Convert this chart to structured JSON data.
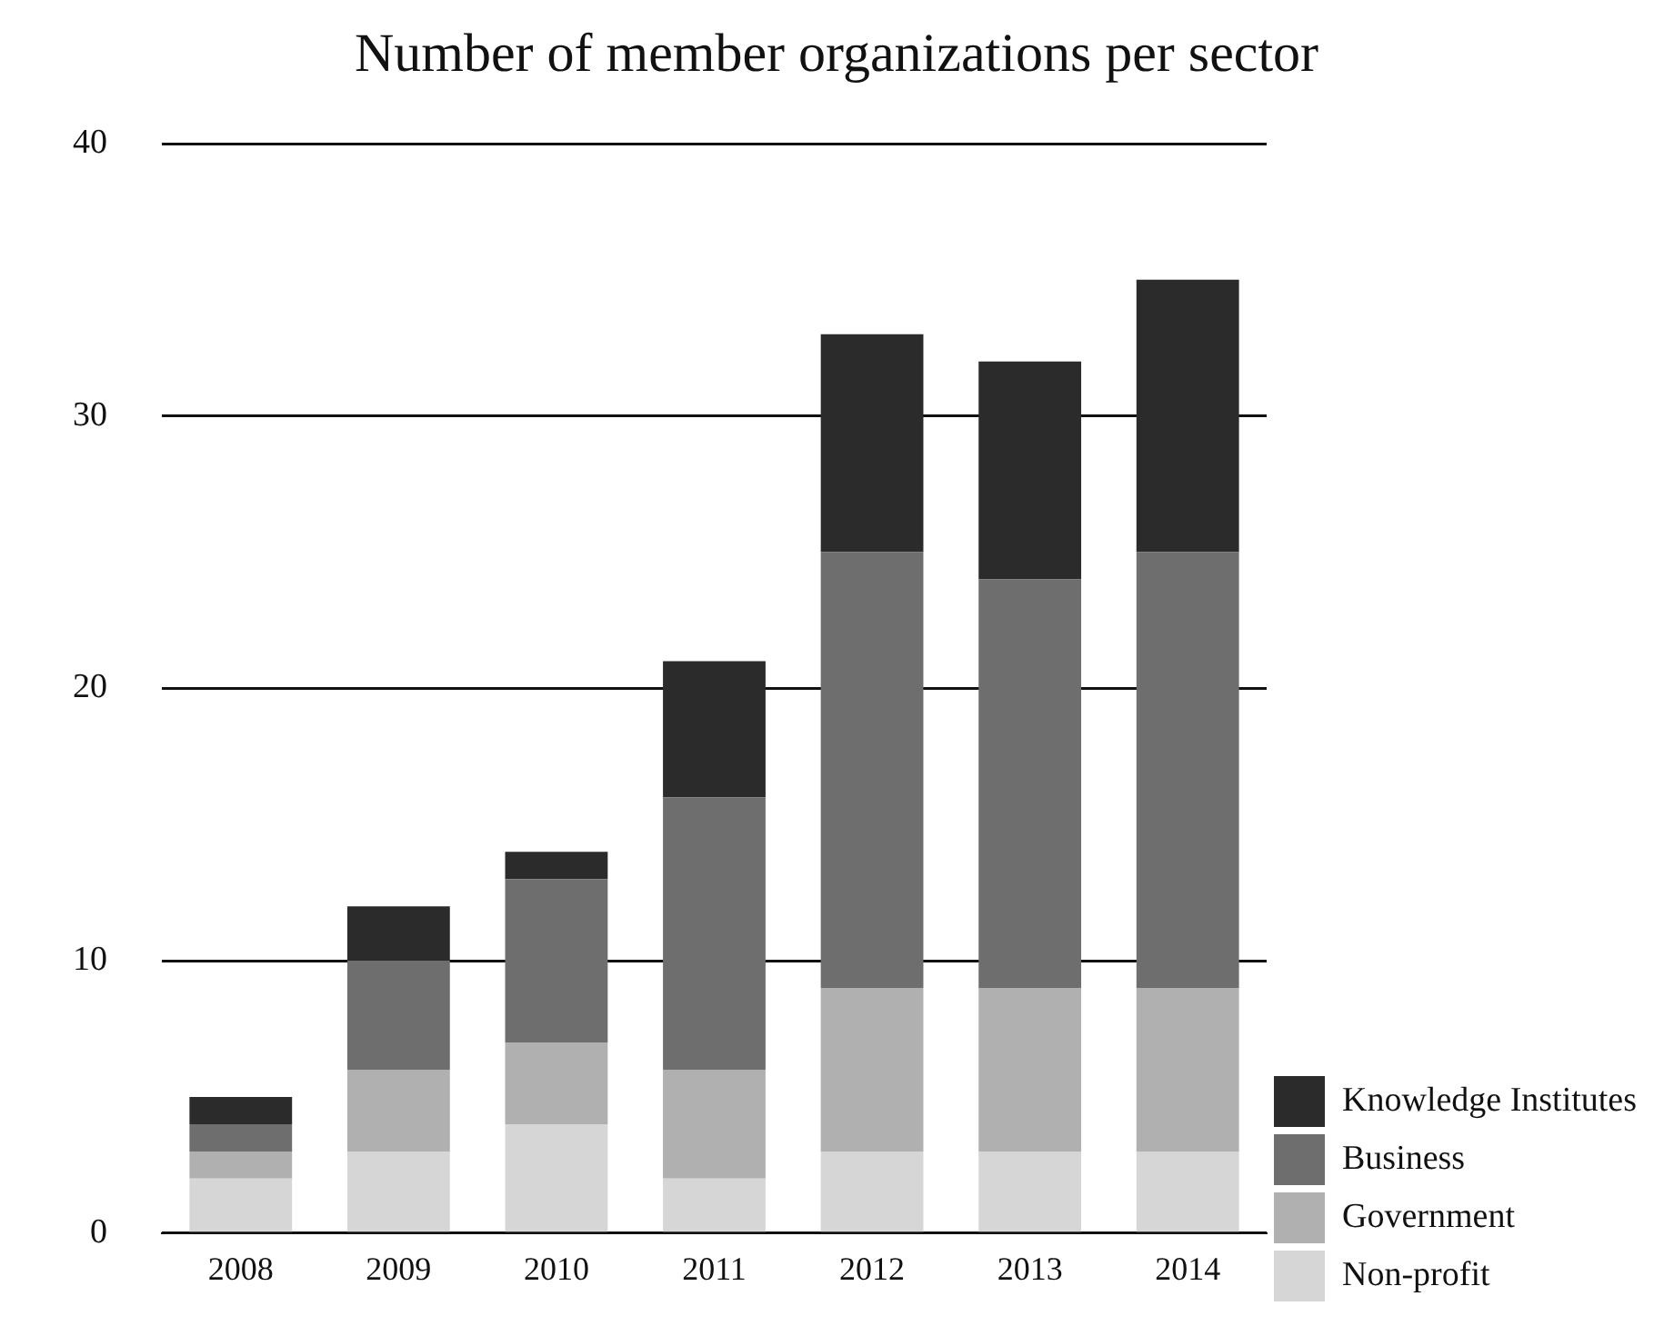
{
  "chart_data": {
    "type": "bar",
    "title": "Number of member organizations per sector",
    "stacked": true,
    "categories": [
      "2008",
      "2009",
      "2010",
      "2011",
      "2012",
      "2013",
      "2014"
    ],
    "series": [
      {
        "name": "Non-profit",
        "color": "#d6d6d6",
        "values": [
          2,
          3,
          4,
          2,
          3,
          3,
          3
        ]
      },
      {
        "name": "Government",
        "color": "#b0b0b0",
        "values": [
          1,
          3,
          3,
          4,
          6,
          6,
          6
        ]
      },
      {
        "name": "Business",
        "color": "#6e6e6e",
        "values": [
          1,
          4,
          6,
          10,
          16,
          15,
          16
        ]
      },
      {
        "name": "Knowledge Institutes",
        "color": "#2b2b2b",
        "values": [
          1,
          2,
          1,
          5,
          8,
          8,
          10
        ]
      }
    ],
    "ylim": [
      0,
      40
    ],
    "yticks": [
      0,
      10,
      20,
      30,
      40
    ],
    "grid": "y",
    "legend": "bottom right"
  }
}
